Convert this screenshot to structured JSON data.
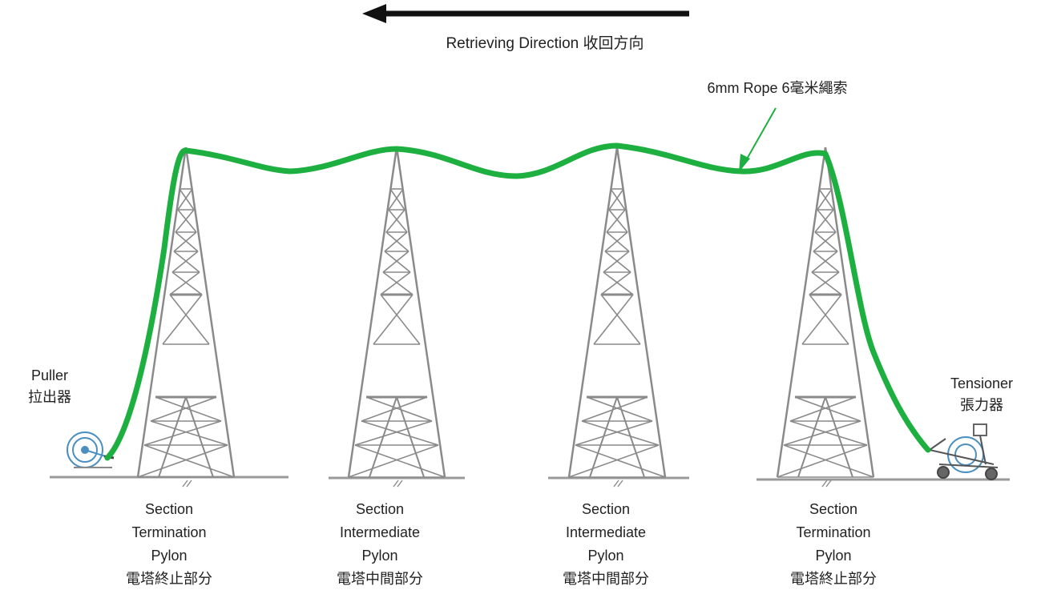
{
  "diagram": {
    "direction": {
      "label": "Retrieving Direction 收回方向"
    },
    "rope": {
      "label": "6mm Rope 6毫米繩索",
      "color": "#1db040"
    },
    "puller": {
      "lines": [
        "Puller",
        "拉出器"
      ]
    },
    "tensioner": {
      "lines": [
        "Tensioner",
        "張力器"
      ]
    },
    "pylons": [
      {
        "lines": [
          "Section",
          "Termination",
          "Pylon",
          "電塔終止部分"
        ]
      },
      {
        "lines": [
          "Section",
          "Intermediate",
          "Pylon",
          "電塔中間部分"
        ]
      },
      {
        "lines": [
          "Section",
          "Intermediate",
          "Pylon",
          "電塔中間部分"
        ]
      },
      {
        "lines": [
          "Section",
          "Termination",
          "Pylon",
          "電塔終止部分"
        ]
      }
    ],
    "colors": {
      "structure": "#8a8a8a",
      "arrow": "#111111",
      "equipment": "#4a8fc0"
    }
  }
}
